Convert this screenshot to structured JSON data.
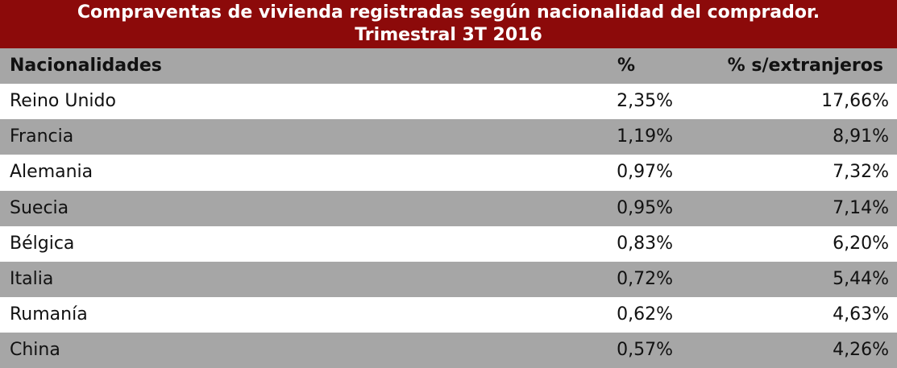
{
  "title": [
    "Compraventas de vivienda registradas según nacionalidad del comprador.",
    "Trimestral 3T 2016"
  ],
  "table": {
    "header": [
      "Nacionalidades",
      "%",
      "% s/extranjeros"
    ],
    "rows": [
      [
        "Reino Unido",
        "2,35%",
        "17,66%"
      ],
      [
        "Francia",
        "1,19%",
        "8,91%"
      ],
      [
        "Alemania",
        "0,97%",
        "7,32%"
      ],
      [
        "Suecia",
        "0,95%",
        "7,14%"
      ],
      [
        "Bélgica",
        "0,83%",
        "6,20%"
      ],
      [
        "Italia",
        "0,72%",
        "5,44%"
      ],
      [
        "Rumanía",
        "0,62%",
        "4,63%"
      ],
      [
        "China",
        "0,57%",
        "4,26%"
      ]
    ]
  }
}
